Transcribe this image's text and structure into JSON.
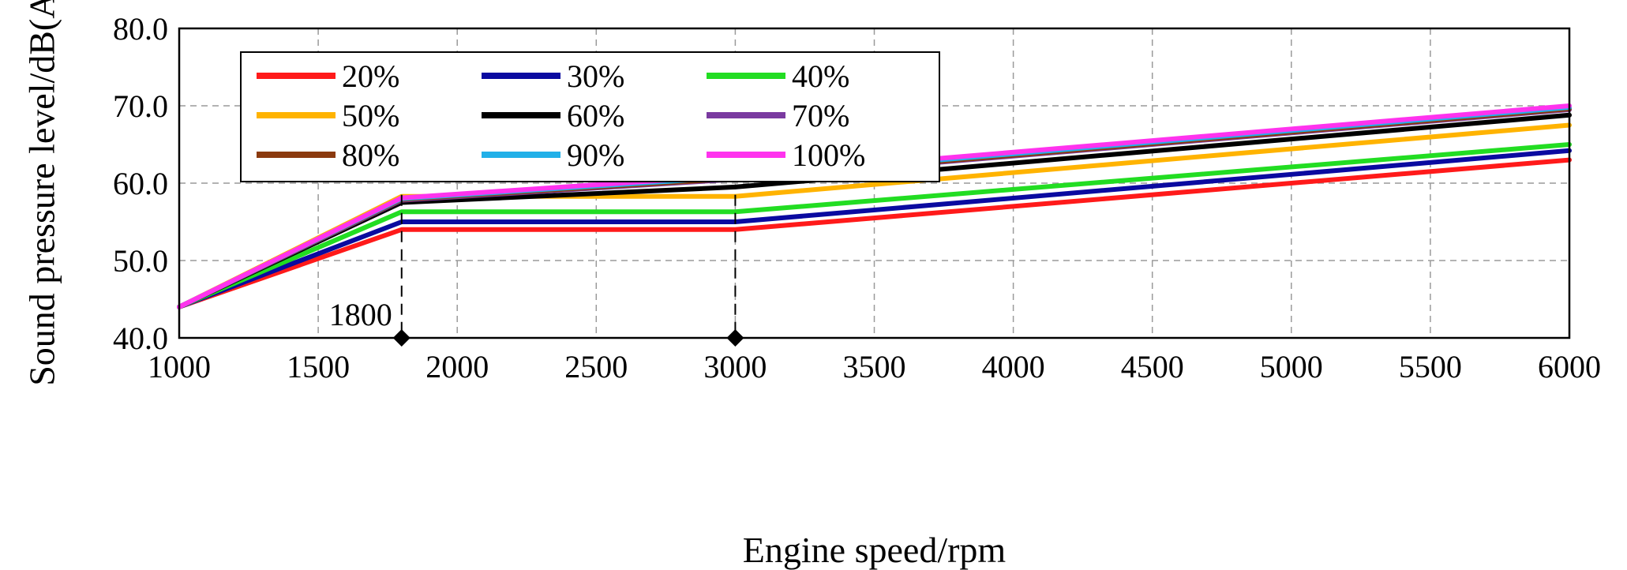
{
  "chart_data": {
    "type": "line",
    "title": "",
    "xlabel": "Engine speed/rpm",
    "ylabel": "Sound pressure level/dB(A)",
    "xlim": [
      1000,
      6000
    ],
    "ylim": [
      40,
      80
    ],
    "xticks": [
      1000,
      1500,
      2000,
      2500,
      3000,
      3500,
      4000,
      4500,
      5000,
      5500,
      6000
    ],
    "yticks": [
      40,
      50,
      60,
      70,
      80
    ],
    "ytick_labels": [
      "40.0",
      "50.0",
      "60.0",
      "70.0",
      "80.0"
    ],
    "grid": true,
    "legend_position": "top-left",
    "legend_columns": 3,
    "annotations": [
      {
        "label": "1800",
        "x": 1800,
        "y": 40
      },
      {
        "label": "",
        "x": 3000,
        "y": 40
      }
    ],
    "series": [
      {
        "name": "20%",
        "color": "#ff1a1a",
        "x": [
          1000,
          1800,
          3000,
          6000
        ],
        "values": [
          44,
          54.0,
          54.0,
          63.0
        ]
      },
      {
        "name": "30%",
        "color": "#0a0aa0",
        "x": [
          1000,
          1800,
          3000,
          6000
        ],
        "values": [
          44,
          55.0,
          55.0,
          64.2
        ]
      },
      {
        "name": "40%",
        "color": "#22dd22",
        "x": [
          1000,
          1800,
          3000,
          6000
        ],
        "values": [
          44,
          56.3,
          56.3,
          65.0
        ]
      },
      {
        "name": "50%",
        "color": "#ffb300",
        "x": [
          1000,
          1800,
          3000,
          6000
        ],
        "values": [
          44,
          58.3,
          58.3,
          67.5
        ]
      },
      {
        "name": "60%",
        "color": "#000000",
        "x": [
          1000,
          1800,
          3000,
          6000
        ],
        "values": [
          44,
          57.5,
          59.5,
          68.8
        ]
      },
      {
        "name": "70%",
        "color": "#7a3aa0",
        "x": [
          1000,
          1800,
          3000,
          6000
        ],
        "values": [
          44,
          57.8,
          60.5,
          69.5
        ]
      },
      {
        "name": "80%",
        "color": "#8b3a0e",
        "x": [
          1000,
          1800,
          3000,
          6000
        ],
        "values": [
          44,
          57.9,
          60.6,
          69.6
        ]
      },
      {
        "name": "90%",
        "color": "#22b0e8",
        "x": [
          1000,
          1800,
          3000,
          6000
        ],
        "values": [
          44,
          58.0,
          60.8,
          69.8
        ]
      },
      {
        "name": "100%",
        "color": "#ff33ee",
        "x": [
          1000,
          1800,
          3000,
          6000
        ],
        "values": [
          44,
          58.1,
          61.0,
          70.0
        ]
      }
    ]
  }
}
